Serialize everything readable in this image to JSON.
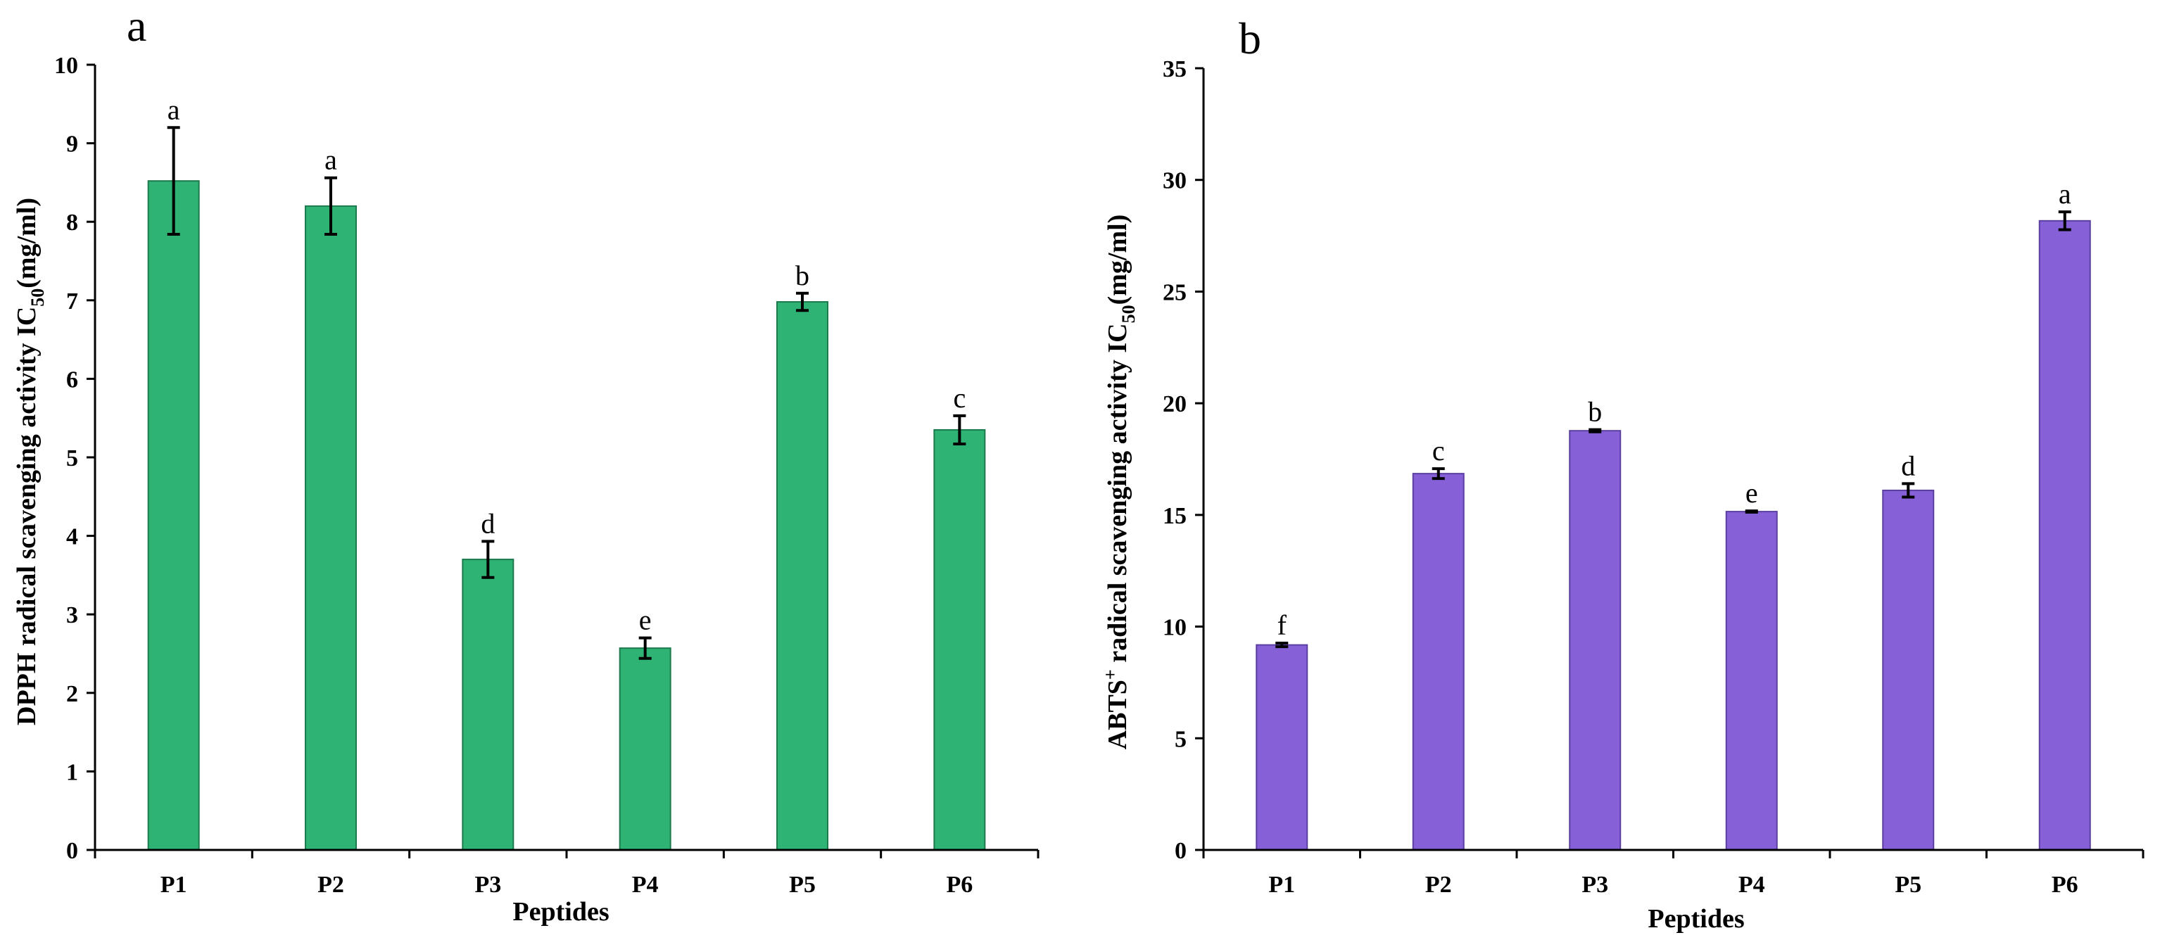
{
  "chart_data": [
    {
      "type": "bar",
      "panel_label": "a",
      "categories": [
        "P1",
        "P2",
        "P3",
        "P4",
        "P5",
        "P6"
      ],
      "values": [
        8.52,
        8.2,
        3.7,
        2.57,
        6.98,
        5.35
      ],
      "errors": [
        0.68,
        0.36,
        0.23,
        0.13,
        0.11,
        0.18
      ],
      "significance": [
        "a",
        "a",
        "d",
        "e",
        "b",
        "c"
      ],
      "ylim": [
        0,
        10
      ],
      "yticks": [
        "0",
        "1",
        "2",
        "3",
        "4",
        "5",
        "6",
        "7",
        "8",
        "9",
        "10"
      ],
      "xlabel": "Peptides",
      "ylabel_main": "DPPH radical scavenging activity IC",
      "ylabel_sub": "50",
      "ylabel_tail": "(mg/ml)",
      "color": "#2eb374"
    },
    {
      "type": "bar",
      "panel_label": "b",
      "categories": [
        "P1",
        "P2",
        "P3",
        "P4",
        "P5",
        "P6"
      ],
      "values": [
        9.18,
        16.85,
        18.77,
        15.15,
        16.1,
        28.17
      ],
      "errors": [
        0.08,
        0.22,
        0.05,
        0.03,
        0.3,
        0.4
      ],
      "significance": [
        "f",
        "c",
        "b",
        "e",
        "d",
        "a"
      ],
      "ylim": [
        0,
        35
      ],
      "yticks": [
        "0",
        "5",
        "10",
        "15",
        "20",
        "25",
        "30",
        "35"
      ],
      "xlabel": "Peptides",
      "ylabel_main": "ABTS",
      "ylabel_sup": "+",
      "ylabel_rest": " radical scavenging activity IC",
      "ylabel_sub": "50",
      "ylabel_tail": "(mg/ml)",
      "color": "#8660d6"
    }
  ]
}
